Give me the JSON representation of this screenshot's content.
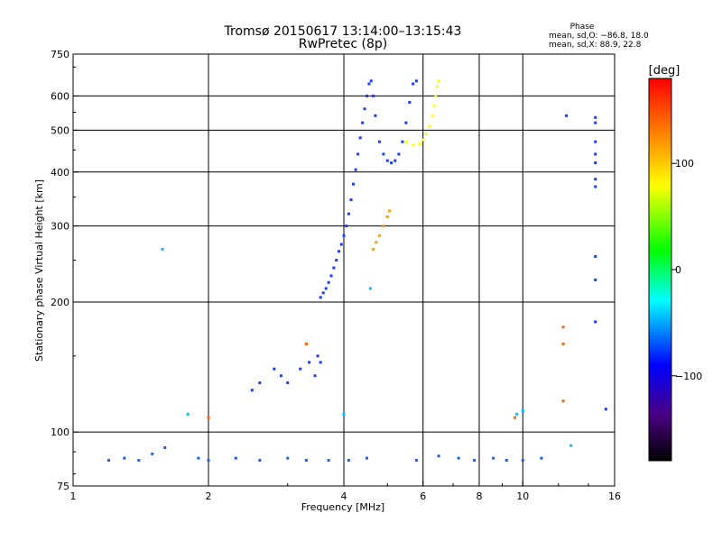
{
  "chart_data": {
    "type": "scatter",
    "title": "Tromsø 20150617 13:14:00–13:15:43",
    "subtitle": "RwPretec (8p)",
    "xlabel": "Frequency [MHz]",
    "ylabel": "Stationary phase Virtual Height [km]",
    "x_scale": "log2",
    "y_scale": "log",
    "xlim": [
      1,
      16
    ],
    "ylim": [
      75,
      750
    ],
    "x_ticks": [
      "1",
      "2",
      "4",
      "6",
      "8",
      "10",
      "16"
    ],
    "y_ticks": [
      "75",
      "100",
      "200",
      "300",
      "400",
      "500",
      "600",
      "750"
    ],
    "x_gridlines": [
      2,
      4,
      6,
      8,
      10
    ],
    "y_gridlines": [
      100,
      200,
      300,
      400,
      500,
      600
    ],
    "grid": true,
    "stats_header": "Phase",
    "stats_o": "mean, sd,O: −86.8, 18.0",
    "stats_x": "mean, sd,X:  88.9, 22.8",
    "colorbar": {
      "label": "[deg]",
      "ticks": [
        "100",
        "0",
        "−100"
      ],
      "tick_values": [
        100,
        0,
        -100
      ],
      "range": [
        -180,
        180
      ],
      "colors": [
        "#000000",
        "#4b0082",
        "#0000ff",
        "#00ffff",
        "#00ff00",
        "#ffff00",
        "#ff7f00",
        "#ff0000"
      ]
    },
    "series": [
      {
        "description_id": "o-trace",
        "phase_color": "#1a3cff",
        "points": [
          [
            3.55,
            205
          ],
          [
            3.6,
            210
          ],
          [
            3.65,
            215
          ],
          [
            3.7,
            222
          ],
          [
            3.75,
            230
          ],
          [
            3.8,
            240
          ],
          [
            3.85,
            250
          ],
          [
            3.9,
            262
          ],
          [
            3.95,
            272
          ],
          [
            4.0,
            285
          ],
          [
            4.05,
            300
          ],
          [
            4.1,
            320
          ],
          [
            4.15,
            345
          ],
          [
            4.2,
            375
          ],
          [
            4.25,
            405
          ],
          [
            4.3,
            440
          ],
          [
            4.35,
            480
          ],
          [
            4.4,
            520
          ],
          [
            4.45,
            560
          ],
          [
            4.5,
            600
          ],
          [
            4.55,
            640
          ],
          [
            4.6,
            650
          ],
          [
            4.65,
            600
          ],
          [
            4.7,
            540
          ],
          [
            4.8,
            470
          ],
          [
            4.9,
            440
          ],
          [
            5.0,
            425
          ],
          [
            5.1,
            420
          ],
          [
            5.2,
            425
          ],
          [
            5.3,
            440
          ],
          [
            5.4,
            470
          ],
          [
            5.5,
            520
          ],
          [
            5.6,
            580
          ],
          [
            5.7,
            640
          ],
          [
            5.8,
            650
          ]
        ]
      },
      {
        "description_id": "x-trace-upper",
        "phase_color": "#ffff00",
        "points": [
          [
            5.5,
            470
          ],
          [
            5.7,
            462
          ],
          [
            5.9,
            465
          ],
          [
            6.0,
            475
          ],
          [
            6.1,
            490
          ],
          [
            6.2,
            510
          ],
          [
            6.3,
            540
          ],
          [
            6.35,
            570
          ],
          [
            6.4,
            600
          ],
          [
            6.45,
            630
          ],
          [
            6.5,
            650
          ]
        ]
      },
      {
        "description_id": "x-trace-lower",
        "phase_color": "#ffa000",
        "points": [
          [
            4.65,
            265
          ],
          [
            4.72,
            275
          ],
          [
            4.8,
            285
          ],
          [
            4.9,
            300
          ],
          [
            5.0,
            315
          ],
          [
            5.05,
            325
          ]
        ]
      },
      {
        "description_id": "e-layer-cluster",
        "phase_color": "#1a3cff",
        "points": [
          [
            2.8,
            140
          ],
          [
            2.9,
            135
          ],
          [
            3.0,
            130
          ],
          [
            3.2,
            140
          ],
          [
            3.35,
            145
          ],
          [
            3.45,
            135
          ],
          [
            3.5,
            150
          ],
          [
            3.55,
            145
          ],
          [
            2.6,
            130
          ],
          [
            2.5,
            125
          ]
        ]
      },
      {
        "description_id": "lowband-noise",
        "phase_color": "#1a5cff",
        "points": [
          [
            1.2,
            86
          ],
          [
            1.3,
            87
          ],
          [
            1.4,
            86
          ],
          [
            1.5,
            89
          ],
          [
            1.6,
            92
          ],
          [
            1.9,
            87
          ],
          [
            2.0,
            86
          ],
          [
            2.3,
            87
          ],
          [
            2.6,
            86
          ],
          [
            3.0,
            87
          ],
          [
            3.3,
            86
          ],
          [
            3.7,
            86
          ],
          [
            4.1,
            86
          ],
          [
            4.5,
            87
          ],
          [
            5.8,
            86
          ],
          [
            6.5,
            88
          ],
          [
            7.2,
            87
          ],
          [
            7.8,
            86
          ],
          [
            8.6,
            87
          ],
          [
            9.2,
            86
          ],
          [
            10.0,
            86
          ],
          [
            11.0,
            87
          ]
        ]
      },
      {
        "description_id": "high-frequency-column",
        "phase_color": "#1a3cff",
        "points": [
          [
            14.5,
            535
          ],
          [
            14.5,
            520
          ],
          [
            14.5,
            470
          ],
          [
            14.5,
            440
          ],
          [
            14.5,
            420
          ],
          [
            14.5,
            385
          ],
          [
            14.5,
            370
          ],
          [
            14.5,
            255
          ],
          [
            14.5,
            225
          ],
          [
            14.5,
            180
          ],
          [
            12.5,
            540
          ],
          [
            15.3,
            113
          ]
        ]
      },
      {
        "description_id": "scattered-warm",
        "phase_color": "#ff6000",
        "points": [
          [
            12.3,
            175
          ],
          [
            12.3,
            160
          ],
          [
            12.3,
            118
          ],
          [
            2.0,
            108
          ],
          [
            9.6,
            108
          ],
          [
            3.3,
            160
          ]
        ]
      },
      {
        "description_id": "scattered-misc",
        "phase_color": "#00c0ff",
        "points": [
          [
            1.58,
            265
          ],
          [
            1.8,
            110
          ],
          [
            9.7,
            110
          ],
          [
            10.0,
            112
          ],
          [
            12.8,
            93
          ],
          [
            4.58,
            215
          ],
          [
            4.0,
            110
          ]
        ]
      }
    ]
  }
}
